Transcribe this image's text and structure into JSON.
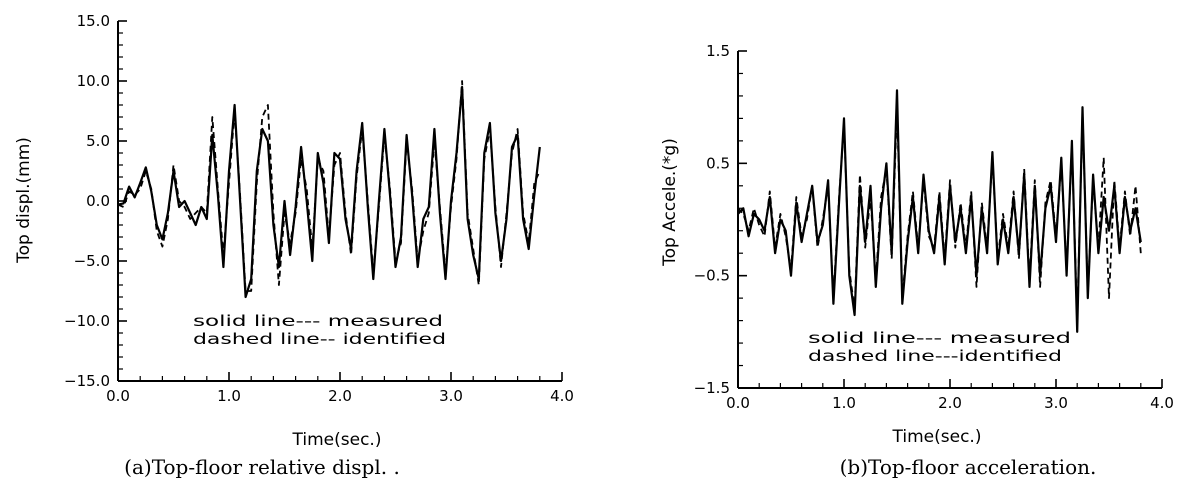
{
  "chart_data": [
    {
      "type": "line",
      "caption": "(a)Top-floor relative displ. .",
      "xlabel": "Time(sec.)",
      "ylabel": "Top displ.(mm)",
      "xlim": [
        0.0,
        4.0
      ],
      "ylim": [
        -15.0,
        15.0
      ],
      "xticks": [
        "0.0",
        "1.0",
        "2.0",
        "3.0",
        "4.0"
      ],
      "yticks": [
        "15.0",
        "10.0",
        "5.0",
        "0.0",
        "-5.0",
        "-10.0",
        "-15.0"
      ],
      "legend": [
        "solid line--- measured",
        "dashed line-- identified"
      ],
      "series": [
        {
          "name": "measured",
          "style": "solid",
          "x": [
            0.0,
            0.05,
            0.1,
            0.15,
            0.2,
            0.25,
            0.3,
            0.35,
            0.4,
            0.45,
            0.5,
            0.55,
            0.6,
            0.65,
            0.7,
            0.75,
            0.8,
            0.85,
            0.9,
            0.95,
            1.0,
            1.05,
            1.1,
            1.15,
            1.2,
            1.25,
            1.3,
            1.35,
            1.4,
            1.45,
            1.5,
            1.55,
            1.6,
            1.65,
            1.7,
            1.75,
            1.8,
            1.85,
            1.9,
            1.95,
            2.0,
            2.05,
            2.1,
            2.15,
            2.2,
            2.25,
            2.3,
            2.35,
            2.4,
            2.45,
            2.5,
            2.55,
            2.6,
            2.65,
            2.7,
            2.75,
            2.8,
            2.85,
            2.9,
            2.95,
            3.0,
            3.05,
            3.1,
            3.15,
            3.2,
            3.25,
            3.3,
            3.35,
            3.4,
            3.45,
            3.5,
            3.55,
            3.6,
            3.65,
            3.7,
            3.75,
            3.8
          ],
          "values": [
            -0.3,
            -0.2,
            1.2,
            0.3,
            1.5,
            2.8,
            0.8,
            -2.0,
            -3.2,
            -1.0,
            2.5,
            -0.5,
            0.0,
            -1.0,
            -2.0,
            -0.5,
            -1.5,
            5.5,
            0.5,
            -5.5,
            2.5,
            8.0,
            0.0,
            -8.0,
            -6.5,
            2.5,
            6.0,
            5.0,
            -2.0,
            -5.5,
            0.0,
            -4.5,
            -0.5,
            4.5,
            0.0,
            -5.0,
            4.0,
            1.5,
            -3.5,
            4.0,
            3.5,
            -1.5,
            -4.0,
            2.5,
            6.5,
            -0.5,
            -6.5,
            0.0,
            6.0,
            0.5,
            -5.5,
            -3.0,
            5.5,
            0.5,
            -5.5,
            -1.5,
            -0.5,
            6.0,
            -1.0,
            -6.5,
            0.0,
            4.0,
            9.5,
            -1.5,
            -4.5,
            -6.5,
            4.0,
            6.5,
            -1.0,
            -5.0,
            -1.5,
            4.5,
            5.5,
            -1.5,
            -4.0,
            0.5,
            4.5
          ]
        },
        {
          "name": "identified",
          "style": "dashed",
          "x": [
            0.0,
            0.05,
            0.1,
            0.15,
            0.2,
            0.25,
            0.3,
            0.35,
            0.4,
            0.45,
            0.5,
            0.55,
            0.6,
            0.65,
            0.7,
            0.75,
            0.8,
            0.85,
            0.9,
            0.95,
            1.0,
            1.05,
            1.1,
            1.15,
            1.2,
            1.25,
            1.3,
            1.35,
            1.4,
            1.45,
            1.5,
            1.55,
            1.6,
            1.65,
            1.7,
            1.75,
            1.8,
            1.85,
            1.9,
            1.95,
            2.0,
            2.05,
            2.1,
            2.15,
            2.2,
            2.25,
            2.3,
            2.35,
            2.4,
            2.45,
            2.5,
            2.55,
            2.6,
            2.65,
            2.7,
            2.75,
            2.8,
            2.85,
            2.9,
            2.95,
            3.0,
            3.05,
            3.1,
            3.15,
            3.2,
            3.25,
            3.3,
            3.35,
            3.4,
            3.45,
            3.5,
            3.55,
            3.6,
            3.65,
            3.7,
            3.75,
            3.8
          ],
          "values": [
            -0.3,
            -0.5,
            0.8,
            0.5,
            1.0,
            2.5,
            1.0,
            -2.5,
            -3.8,
            -1.5,
            3.0,
            0.0,
            -0.5,
            -1.5,
            -1.0,
            -0.5,
            -1.0,
            7.0,
            1.0,
            -4.5,
            1.5,
            7.5,
            0.5,
            -7.5,
            -7.5,
            1.5,
            7.0,
            8.0,
            -1.0,
            -7.0,
            -1.0,
            -3.5,
            -1.0,
            3.5,
            1.0,
            -4.0,
            3.5,
            2.5,
            -3.0,
            3.0,
            4.0,
            -1.0,
            -4.5,
            2.0,
            6.0,
            0.0,
            -6.0,
            -0.5,
            5.5,
            1.0,
            -5.0,
            -3.5,
            5.0,
            1.0,
            -5.0,
            -2.5,
            -1.0,
            5.0,
            -0.5,
            -6.0,
            -0.5,
            3.5,
            10.0,
            -1.0,
            -4.0,
            -7.0,
            3.5,
            6.0,
            -0.5,
            -5.5,
            -1.0,
            4.0,
            6.0,
            -1.0,
            -3.5,
            1.5,
            2.5
          ]
        }
      ]
    },
    {
      "type": "line",
      "caption": "(b)Top-floor acceleration.",
      "xlabel": "Time(sec.)",
      "ylabel": "Top Accele.(*g)",
      "xlim": [
        0.0,
        4.0
      ],
      "ylim": [
        -1.5,
        1.5
      ],
      "xticks": [
        "0.0",
        "1.0",
        "2.0",
        "3.0",
        "4.0"
      ],
      "yticks": [
        "1.5",
        "0.5",
        "-0.5",
        "-1.5"
      ],
      "legend": [
        "solid line--- measured",
        "dashed line---identified"
      ],
      "series": [
        {
          "name": "measured",
          "style": "solid",
          "x": [
            0.0,
            0.05,
            0.1,
            0.15,
            0.2,
            0.25,
            0.3,
            0.35,
            0.4,
            0.45,
            0.5,
            0.55,
            0.6,
            0.65,
            0.7,
            0.75,
            0.8,
            0.85,
            0.9,
            0.95,
            1.0,
            1.05,
            1.1,
            1.15,
            1.2,
            1.25,
            1.3,
            1.35,
            1.4,
            1.45,
            1.5,
            1.55,
            1.6,
            1.65,
            1.7,
            1.75,
            1.8,
            1.85,
            1.9,
            1.95,
            2.0,
            2.05,
            2.1,
            2.15,
            2.2,
            2.25,
            2.3,
            2.35,
            2.4,
            2.45,
            2.5,
            2.55,
            2.6,
            2.65,
            2.7,
            2.75,
            2.8,
            2.85,
            2.9,
            2.95,
            3.0,
            3.05,
            3.1,
            3.15,
            3.2,
            3.25,
            3.3,
            3.35,
            3.4,
            3.45,
            3.5,
            3.55,
            3.6,
            3.65,
            3.7,
            3.75,
            3.8
          ],
          "values": [
            0.05,
            0.1,
            -0.15,
            0.05,
            0.0,
            -0.1,
            0.2,
            -0.3,
            0.0,
            -0.1,
            -0.5,
            0.15,
            -0.2,
            0.05,
            0.3,
            -0.2,
            -0.05,
            0.35,
            -0.75,
            0.1,
            0.9,
            -0.5,
            -0.85,
            0.3,
            -0.2,
            0.3,
            -0.6,
            0.1,
            0.5,
            -0.3,
            1.15,
            -0.75,
            -0.2,
            0.2,
            -0.3,
            0.4,
            -0.1,
            -0.3,
            0.2,
            -0.4,
            0.3,
            -0.2,
            0.1,
            -0.3,
            0.2,
            -0.5,
            0.1,
            -0.3,
            0.6,
            -0.4,
            0.0,
            -0.3,
            0.2,
            -0.3,
            0.4,
            -0.6,
            0.3,
            -0.5,
            0.1,
            0.3,
            -0.2,
            0.55,
            -0.5,
            0.7,
            -1.0,
            1.0,
            -0.7,
            0.4,
            -0.3,
            0.2,
            -0.1,
            0.3,
            -0.3,
            0.2,
            -0.1,
            0.1,
            -0.2
          ]
        },
        {
          "name": "identified",
          "style": "dashed",
          "x": [
            0.0,
            0.05,
            0.1,
            0.15,
            0.2,
            0.25,
            0.3,
            0.35,
            0.4,
            0.45,
            0.5,
            0.55,
            0.6,
            0.65,
            0.7,
            0.75,
            0.8,
            0.85,
            0.9,
            0.95,
            1.0,
            1.05,
            1.1,
            1.15,
            1.2,
            1.25,
            1.3,
            1.35,
            1.4,
            1.45,
            1.5,
            1.55,
            1.6,
            1.65,
            1.7,
            1.75,
            1.8,
            1.85,
            1.9,
            1.95,
            2.0,
            2.05,
            2.1,
            2.15,
            2.2,
            2.25,
            2.3,
            2.35,
            2.4,
            2.45,
            2.5,
            2.55,
            2.6,
            2.65,
            2.7,
            2.75,
            2.8,
            2.85,
            2.9,
            2.95,
            3.0,
            3.05,
            3.1,
            3.15,
            3.2,
            3.25,
            3.3,
            3.35,
            3.4,
            3.45,
            3.5,
            3.55,
            3.6,
            3.65,
            3.7,
            3.75,
            3.8
          ],
          "values": [
            0.1,
            0.05,
            -0.1,
            0.1,
            -0.05,
            -0.15,
            0.25,
            -0.25,
            0.05,
            -0.15,
            -0.45,
            0.2,
            -0.15,
            0.0,
            0.3,
            -0.25,
            0.0,
            0.3,
            -0.7,
            0.15,
            0.85,
            -0.45,
            -0.8,
            0.4,
            -0.25,
            0.2,
            -0.55,
            0.2,
            0.45,
            -0.35,
            1.0,
            -0.7,
            -0.15,
            0.25,
            -0.25,
            0.35,
            -0.15,
            -0.25,
            0.25,
            -0.35,
            0.35,
            -0.25,
            0.15,
            -0.25,
            0.25,
            -0.6,
            0.15,
            -0.25,
            0.55,
            -0.35,
            0.05,
            -0.25,
            0.25,
            -0.35,
            0.45,
            -0.55,
            0.35,
            -0.6,
            0.15,
            0.35,
            -0.15,
            0.5,
            -0.45,
            0.65,
            -0.9,
            0.95,
            -0.65,
            0.35,
            -0.25,
            0.55,
            -0.7,
            0.35,
            -0.25,
            0.25,
            -0.15,
            0.3,
            -0.3
          ]
        }
      ]
    }
  ]
}
